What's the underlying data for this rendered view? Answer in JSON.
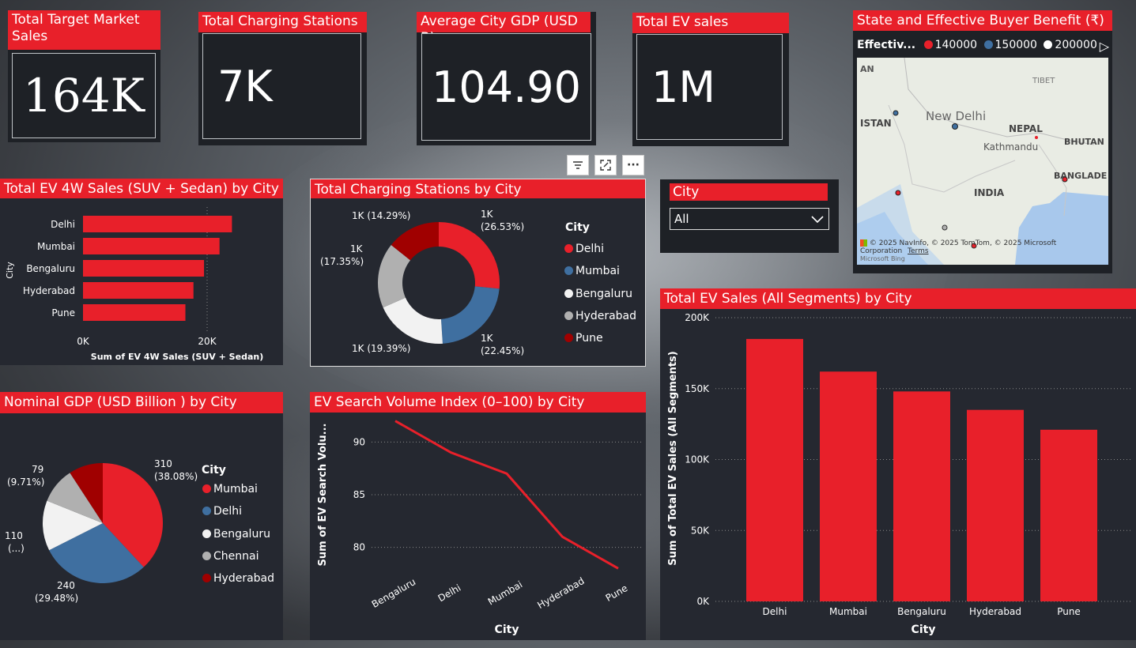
{
  "kpis": [
    {
      "title": "Total Target Market Sales",
      "value": "164K"
    },
    {
      "title": "Total Charging Stations",
      "value": "7K"
    },
    {
      "title": "Average City GDP (USD B)",
      "value": "104.90"
    },
    {
      "title": "Total EV sales",
      "value": "1M"
    }
  ],
  "map": {
    "title": "State and Effective Buyer Benefit (₹)",
    "legend_title": "Effectiv...",
    "legend": [
      {
        "label": "140000",
        "color": "#e8202a"
      },
      {
        "label": "150000",
        "color": "#3f6fa0"
      },
      {
        "label": "200000",
        "color": "#ffffff"
      }
    ],
    "labels": [
      "AN",
      "TIBET",
      "New Delhi",
      "ISTAN",
      "NEPAL",
      "Kathmandu",
      "BHUTAN",
      "BANGLADE",
      "INDIA"
    ],
    "copyright": "© 2025 NavInfo, © 2025 TomTom, © 2025 Microsoft Corporation",
    "terms": "Terms",
    "bing": "Microsoft Bing"
  },
  "slicer": {
    "title": "City",
    "value": "All"
  },
  "toolbar": {
    "filter_icon": "filter-icon",
    "focus_icon": "focus-mode-icon",
    "more_label": "···"
  },
  "bar4w": {
    "title": "Total EV 4W Sales (SUV + Sedan) by City",
    "y_axis_title": "City",
    "x_axis_title": "Sum of EV 4W Sales (SUV + Sedan)",
    "x_ticks": [
      "0K",
      "20K"
    ]
  },
  "donut": {
    "title": "Total Charging Stations by City",
    "legend_title": "City",
    "labels": [
      {
        "value": "1K",
        "pct": "(26.53%)"
      },
      {
        "value": "1K",
        "pct": "(22.45%)"
      },
      {
        "value": "1K (19.39%)",
        "pct": ""
      },
      {
        "value": "1K",
        "pct": "(17.35%)"
      },
      {
        "value": "1K (14.29%)",
        "pct": ""
      }
    ]
  },
  "gdp": {
    "title": "Nominal GDP (USD Billion ) by City",
    "legend_title": "City",
    "labels": [
      {
        "value": "310",
        "pct": "(38.08%)"
      },
      {
        "value": "240",
        "pct": "(29.48%)"
      },
      {
        "value": "110",
        "pct": "(...)"
      },
      {
        "value": "79",
        "pct": "(9.71%)"
      }
    ]
  },
  "search": {
    "title": "EV Search Volume Index (0–100) by City",
    "y_axis_title": "Sum of EV Search Volu...",
    "x_axis_title": "City",
    "y_ticks": [
      "90",
      "85",
      "80"
    ]
  },
  "total": {
    "title": "Total EV Sales (All Segments) by City",
    "y_axis_title": "Sum of Total EV Sales (All Segments)",
    "x_axis_title": "City",
    "y_ticks": [
      "200K",
      "150K",
      "100K",
      "50K",
      "0K"
    ]
  },
  "chart_data": [
    {
      "type": "bar",
      "orientation": "horizontal",
      "title": "Total EV 4W Sales (SUV + Sedan) by City",
      "categories": [
        "Delhi",
        "Mumbai",
        "Bengaluru",
        "Hyderabad",
        "Pune"
      ],
      "values": [
        24000,
        22000,
        19500,
        17800,
        16500
      ],
      "xlabel": "Sum of EV 4W Sales (SUV + Sedan)",
      "ylabel": "City",
      "xlim": [
        0,
        25000
      ],
      "color": "#e8202a"
    },
    {
      "type": "pie",
      "donut": true,
      "title": "Total Charging Stations by City",
      "categories": [
        "Delhi",
        "Mumbai",
        "Bengaluru",
        "Hyderabad",
        "Pune"
      ],
      "values": [
        26.53,
        22.45,
        19.39,
        17.35,
        14.29
      ],
      "colors": [
        "#e8202a",
        "#3f6fa0",
        "#f2f2f2",
        "#b0b0b0",
        "#a00000"
      ],
      "legend": "right"
    },
    {
      "type": "pie",
      "title": "Nominal GDP (USD Billion ) by City",
      "categories": [
        "Mumbai",
        "Delhi",
        "Bengaluru",
        "Chennai",
        "Hyderabad"
      ],
      "values": [
        310,
        240,
        110,
        79,
        75
      ],
      "colors": [
        "#e8202a",
        "#3f6fa0",
        "#f2f2f2",
        "#b0b0b0",
        "#a00000"
      ],
      "legend": "right"
    },
    {
      "type": "line",
      "title": "EV Search Volume Index (0–100) by City",
      "categories": [
        "Bengaluru",
        "Delhi",
        "Mumbai",
        "Hyderabad",
        "Pune"
      ],
      "values": [
        92,
        89,
        87,
        81,
        78
      ],
      "xlabel": "City",
      "ylabel": "Sum of EV Search Volu...",
      "ylim": [
        77.5,
        92.5
      ],
      "color": "#e8202a"
    },
    {
      "type": "bar",
      "title": "Total EV Sales (All Segments) by City",
      "categories": [
        "Delhi",
        "Mumbai",
        "Bengaluru",
        "Hyderabad",
        "Pune"
      ],
      "values": [
        185000,
        162000,
        148000,
        135000,
        121000
      ],
      "xlabel": "City",
      "ylabel": "Sum of Total EV Sales (All Segments)",
      "ylim": [
        0,
        200000
      ],
      "grid": true,
      "color": "#e8202a"
    }
  ]
}
